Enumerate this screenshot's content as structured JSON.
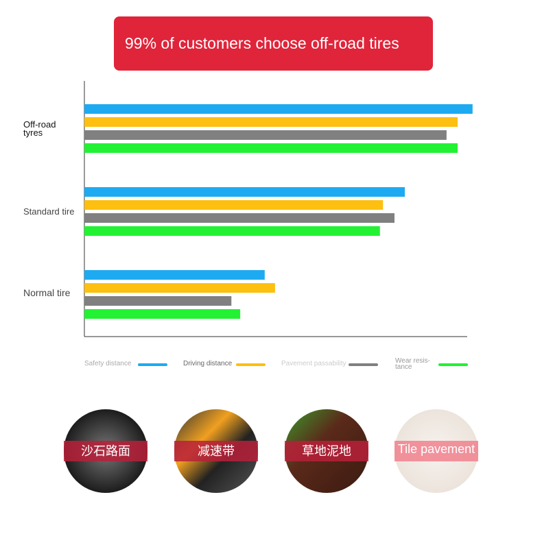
{
  "chart_data": {
    "type": "bar",
    "orientation": "horizontal",
    "title": "99% of customers choose off-road tires",
    "categories": [
      "Off-road tyres",
      "Standard tire",
      "Normal tire"
    ],
    "series": [
      {
        "name": "Safety distance",
        "color": "#1eaaf1",
        "values": [
          101.4,
          83.7,
          47.1
        ]
      },
      {
        "name": "Driving distance",
        "color": "#fdc010",
        "values": [
          97.5,
          78,
          49.8
        ]
      },
      {
        "name": "Pavement passability",
        "color": "#808080",
        "values": [
          94.6,
          81,
          38.4
        ]
      },
      {
        "name": "Wear resis-tance",
        "color": "#22f233",
        "values": [
          97.5,
          77.2,
          40.7
        ]
      }
    ],
    "xlim": [
      0,
      100
    ]
  },
  "surfaces": [
    "沙石路面",
    "减速带",
    "草地泥地",
    "Tile pavement"
  ]
}
